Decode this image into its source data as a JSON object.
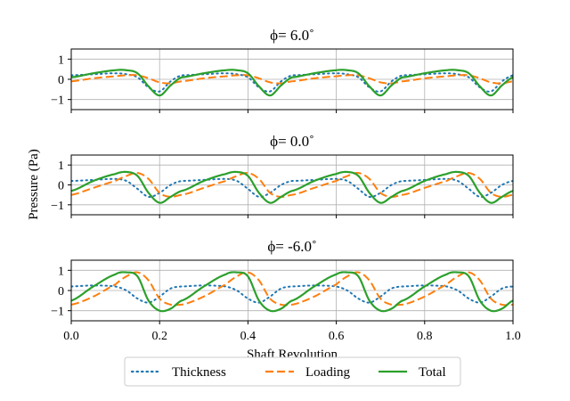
{
  "chart_data": {
    "type": "line",
    "ylabel": "Pressure (Pa)",
    "xlabel": "Shaft Revolution",
    "xlim": [
      0.0,
      1.0
    ],
    "xticks": [
      "0.0",
      "0.2",
      "0.4",
      "0.6",
      "0.8",
      "1.0"
    ],
    "yticks": [
      "1",
      "0",
      "−1"
    ],
    "ylim": [
      -1.5,
      1.5
    ],
    "grid": true,
    "legend": {
      "position": "bottom-center",
      "entries": [
        {
          "label": "Thickness",
          "color": "#1f77b4",
          "style": "dotted"
        },
        {
          "label": "Loading",
          "color": "#ff7f0e",
          "style": "dashed"
        },
        {
          "label": "Total",
          "color": "#2ca02c",
          "style": "solid"
        }
      ]
    },
    "blade_period": 0.25,
    "panels": [
      {
        "title": "ϕ= 6.0˚",
        "x": [
          0.0,
          0.05,
          0.1,
          0.125,
          0.15,
          0.175,
          0.2,
          0.225,
          0.25
        ],
        "series": [
          {
            "name": "Thickness",
            "y": [
              0.2,
              0.25,
              0.3,
              0.25,
              0.1,
              -0.4,
              -0.6,
              -0.1,
              0.2
            ]
          },
          {
            "name": "Loading",
            "y": [
              -0.1,
              0.05,
              0.15,
              0.2,
              0.2,
              0.05,
              -0.15,
              -0.2,
              -0.1
            ]
          },
          {
            "name": "Total",
            "y": [
              0.1,
              0.3,
              0.45,
              0.45,
              0.3,
              -0.35,
              -0.8,
              -0.3,
              0.1
            ]
          }
        ]
      },
      {
        "title": "ϕ= 0.0˚",
        "x": [
          0.0,
          0.05,
          0.1,
          0.125,
          0.15,
          0.175,
          0.2,
          0.225,
          0.25
        ],
        "series": [
          {
            "name": "Thickness",
            "y": [
              0.2,
              0.25,
              0.3,
              0.2,
              -0.2,
              -0.6,
              -0.4,
              0.0,
              0.2
            ]
          },
          {
            "name": "Loading",
            "y": [
              -0.5,
              -0.15,
              0.2,
              0.45,
              0.6,
              0.3,
              -0.4,
              -0.6,
              -0.5
            ]
          },
          {
            "name": "Total",
            "y": [
              -0.3,
              0.2,
              0.55,
              0.65,
              0.45,
              -0.4,
              -0.9,
              -0.6,
              -0.3
            ]
          }
        ]
      },
      {
        "title": "ϕ= -6.0˚",
        "x": [
          0.0,
          0.05,
          0.1,
          0.125,
          0.15,
          0.175,
          0.2,
          0.225,
          0.25
        ],
        "series": [
          {
            "name": "Thickness",
            "y": [
              0.2,
              0.25,
              0.2,
              0.0,
              -0.4,
              -0.6,
              -0.3,
              0.1,
              0.2
            ]
          },
          {
            "name": "Loading",
            "y": [
              -0.7,
              -0.3,
              0.3,
              0.7,
              0.9,
              0.5,
              -0.4,
              -0.7,
              -0.7
            ]
          },
          {
            "name": "Total",
            "y": [
              -0.5,
              0.2,
              0.8,
              0.9,
              0.7,
              -0.5,
              -1.0,
              -0.9,
              -0.5
            ]
          }
        ]
      }
    ]
  }
}
